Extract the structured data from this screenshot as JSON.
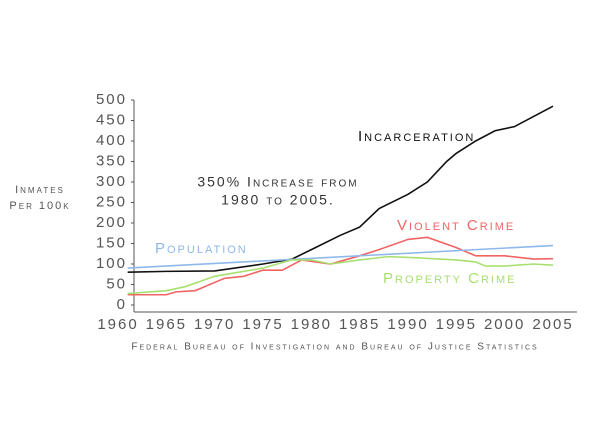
{
  "chart_data": {
    "type": "line",
    "y_label": [
      "Inmates",
      "Per 100k"
    ],
    "annotation": [
      "350% Increase from",
      "1980 to 2005."
    ],
    "source": "Federal Bureau of Investigation and Bureau of Justice Statistics",
    "xlim": [
      1960,
      2005
    ],
    "xticks": [
      1960,
      1965,
      1970,
      1975,
      1980,
      1985,
      1990,
      1995,
      2000,
      2005
    ],
    "ylim": [
      0,
      500
    ],
    "yticks": [
      0,
      50,
      100,
      150,
      200,
      250,
      300,
      350,
      400,
      450,
      500
    ],
    "grid": false,
    "series": [
      {
        "name": "Incarceration",
        "color": "#111111",
        "x": [
          1961,
          1965,
          1970,
          1975,
          1978,
          1980,
          1983,
          1985,
          1987,
          1990,
          1992,
          1994,
          1995,
          1997,
          1999,
          2001,
          2003,
          2005
        ],
        "values": [
          80,
          82,
          83,
          100,
          112,
          135,
          170,
          190,
          235,
          270,
          300,
          350,
          370,
          400,
          425,
          435,
          460,
          485
        ]
      },
      {
        "name": "Violent Crime",
        "color": "#f06464",
        "x": [
          1961,
          1965,
          1966,
          1968,
          1970,
          1971,
          1973,
          1975,
          1977,
          1979,
          1982,
          1985,
          1987,
          1990,
          1992,
          1995,
          1997,
          2000,
          2003,
          2005
        ],
        "values": [
          25,
          25,
          32,
          35,
          55,
          65,
          70,
          85,
          85,
          110,
          100,
          120,
          135,
          160,
          165,
          140,
          120,
          120,
          112,
          113
        ]
      },
      {
        "name": "Population",
        "color": "#8fb8ea",
        "x": [
          1961,
          2005
        ],
        "values": [
          90,
          145
        ]
      },
      {
        "name": "Property Crime",
        "color": "#a8e070",
        "x": [
          1961,
          1965,
          1967,
          1970,
          1975,
          1978,
          1980,
          1982,
          1985,
          1988,
          1991,
          1995,
          1997,
          1998,
          2000,
          2003,
          2005
        ],
        "values": [
          28,
          35,
          45,
          70,
          90,
          110,
          110,
          100,
          110,
          118,
          115,
          110,
          105,
          95,
          95,
          100,
          97
        ]
      }
    ]
  }
}
